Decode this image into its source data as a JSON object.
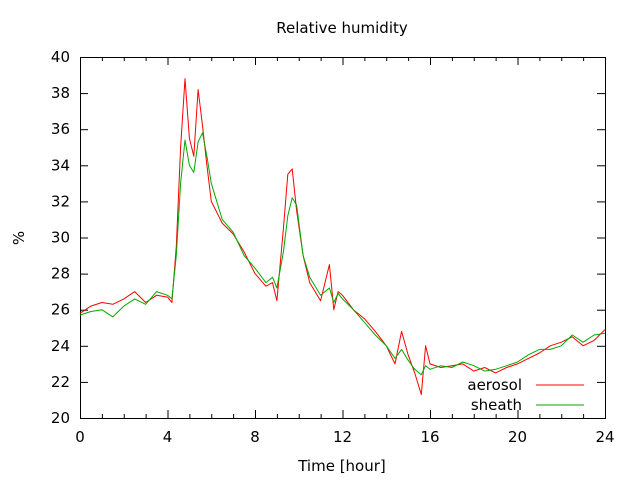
{
  "chart_data": {
    "type": "line",
    "title": "Relative humidity",
    "xlabel": "Time [hour]",
    "ylabel": "%",
    "xlim": [
      0,
      24
    ],
    "ylim": [
      20,
      40
    ],
    "xticks": [
      0,
      4,
      8,
      12,
      16,
      20,
      24
    ],
    "yticks": [
      20,
      22,
      24,
      26,
      28,
      30,
      32,
      34,
      36,
      38,
      40
    ],
    "grid": false,
    "legend_position": "bottom-right",
    "series": [
      {
        "name": "aerosol",
        "color": "#ff0000",
        "x": [
          0,
          0.5,
          1,
          1.5,
          2,
          2.5,
          3,
          3.5,
          4,
          4.2,
          4.4,
          4.6,
          4.8,
          5.0,
          5.2,
          5.4,
          5.6,
          5.8,
          6.0,
          6.5,
          7,
          7.5,
          8,
          8.5,
          8.8,
          9.0,
          9.3,
          9.5,
          9.7,
          9.9,
          10.2,
          10.5,
          11,
          11.4,
          11.6,
          11.8,
          12,
          12.5,
          13,
          13.5,
          14,
          14.4,
          14.7,
          15,
          15.3,
          15.6,
          15.8,
          16,
          16.5,
          17,
          17.5,
          18,
          18.5,
          19,
          19.5,
          20,
          20.5,
          21,
          21.5,
          22,
          22.5,
          23,
          23.5,
          24
        ],
        "y": [
          25.8,
          26.2,
          26.4,
          26.3,
          26.6,
          27.0,
          26.4,
          26.8,
          26.7,
          26.4,
          29.5,
          35.0,
          38.8,
          35.5,
          34.5,
          38.2,
          36.2,
          34.0,
          32.0,
          30.8,
          30.2,
          29.2,
          28.0,
          27.3,
          27.5,
          26.5,
          30.5,
          33.5,
          33.8,
          31.5,
          29.0,
          27.5,
          26.5,
          28.5,
          26.0,
          27.0,
          26.8,
          26.0,
          25.5,
          24.8,
          24.0,
          23.0,
          24.8,
          23.5,
          22.5,
          21.3,
          24.0,
          23.0,
          22.8,
          22.9,
          23.0,
          22.6,
          22.8,
          22.5,
          22.8,
          23.0,
          23.3,
          23.6,
          24.0,
          24.2,
          24.5,
          24.0,
          24.3,
          24.9
        ]
      },
      {
        "name": "sheath",
        "color": "#00aa00",
        "x": [
          0,
          0.5,
          1,
          1.5,
          2,
          2.5,
          3,
          3.5,
          4,
          4.2,
          4.4,
          4.6,
          4.8,
          5.0,
          5.2,
          5.4,
          5.6,
          5.8,
          6.0,
          6.5,
          7,
          7.5,
          8,
          8.5,
          8.8,
          9.0,
          9.3,
          9.5,
          9.7,
          9.9,
          10.2,
          10.5,
          11,
          11.4,
          11.6,
          11.8,
          12,
          12.5,
          13,
          13.5,
          14,
          14.4,
          14.7,
          15,
          15.3,
          15.6,
          15.8,
          16,
          16.5,
          17,
          17.5,
          18,
          18.5,
          19,
          19.5,
          20,
          20.5,
          21,
          21.5,
          22,
          22.5,
          23,
          23.5,
          24
        ],
        "y": [
          25.7,
          25.9,
          26.0,
          25.6,
          26.2,
          26.6,
          26.3,
          27.0,
          26.8,
          26.6,
          29.0,
          33.0,
          35.4,
          34.0,
          33.6,
          35.3,
          35.8,
          34.5,
          33.0,
          31.0,
          30.3,
          29.0,
          28.3,
          27.5,
          27.8,
          27.2,
          29.2,
          31.2,
          32.2,
          31.8,
          29.0,
          27.8,
          26.8,
          27.2,
          26.4,
          26.9,
          26.6,
          26.0,
          25.3,
          24.6,
          24.0,
          23.3,
          23.8,
          23.2,
          22.7,
          22.4,
          22.9,
          22.7,
          22.9,
          22.8,
          23.1,
          22.9,
          22.6,
          22.7,
          22.9,
          23.1,
          23.5,
          23.8,
          23.8,
          24.0,
          24.6,
          24.2,
          24.6,
          24.7
        ]
      }
    ]
  }
}
